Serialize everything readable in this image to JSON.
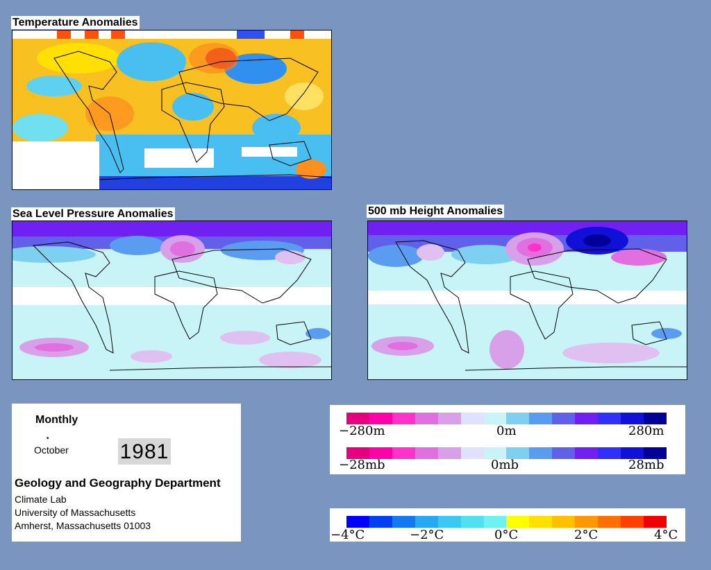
{
  "maps": {
    "temperature": {
      "title": "Temperature Anomalies"
    },
    "slp": {
      "title": "Sea Level Pressure Anomalies"
    },
    "height500": {
      "title": "500 mb Height Anomalies"
    }
  },
  "info": {
    "period": "Monthly",
    "month": "October",
    "year": "1981",
    "department": "Geology and Geography Department",
    "lab": "Climate Lab",
    "university": "University of Massachusetts",
    "address": "Amherst, Massachusetts 01003"
  },
  "legend_pressure": {
    "height_labels": [
      "−280m",
      "0m",
      "280m"
    ],
    "pressure_labels": [
      "−28mb",
      "0mb",
      "28mb"
    ],
    "colors": [
      "#e4007f",
      "#ff00a8",
      "#ff33cc",
      "#e070e0",
      "#d8a0e8",
      "#e0e0ff",
      "#c8f4f8",
      "#7ed0f0",
      "#5a9cf0",
      "#6060e8",
      "#7020f0",
      "#3030f8",
      "#1010d8",
      "#000098"
    ]
  },
  "legend_temperature": {
    "labels": [
      "−4°C",
      "−2°C",
      "0°C",
      "2°C",
      "4°C"
    ],
    "colors": [
      "#0000ff",
      "#0040f0",
      "#1478f0",
      "#28a8f0",
      "#3cc8f0",
      "#50e0f0",
      "#70f0f0",
      "#ffff00",
      "#ffe000",
      "#ffc000",
      "#ff9800",
      "#ff7000",
      "#ff4000",
      "#f00000"
    ]
  }
}
